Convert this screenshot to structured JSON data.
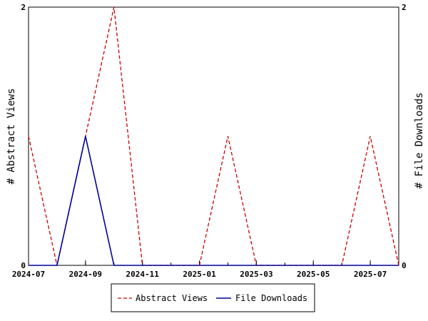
{
  "chart_data": {
    "type": "line",
    "x": [
      "2024-07",
      "2024-08",
      "2024-09",
      "2024-10",
      "2024-11",
      "2024-12",
      "2025-01",
      "2025-02",
      "2025-03",
      "2025-04",
      "2025-05",
      "2025-06",
      "2025-07",
      "2025-08"
    ],
    "x_tick_labels": [
      "2024-07",
      "2024-09",
      "2024-11",
      "2025-01",
      "2025-03",
      "2025-05",
      "2025-07"
    ],
    "series": [
      {
        "name": "Abstract Views",
        "axis": "left",
        "color": "#cc0000",
        "dash": "dashed",
        "values": [
          1,
          0,
          1,
          2,
          0,
          0,
          0,
          1,
          0,
          0,
          0,
          0,
          1,
          0
        ]
      },
      {
        "name": "File Downloads",
        "axis": "right",
        "color": "#000099",
        "dash": "solid",
        "values": [
          0,
          0,
          1,
          0,
          0,
          0,
          0,
          0,
          0,
          0,
          0,
          0,
          0,
          0
        ]
      }
    ],
    "ylabel": "# Abstract Views",
    "y2label": "# File Downloads",
    "ylim": [
      0,
      2
    ],
    "y2lim": [
      0,
      2
    ],
    "y_tick_labels": [
      "0",
      "2"
    ],
    "y2_tick_labels": [
      "0",
      "2"
    ],
    "grid": false,
    "legend_position": "bottom"
  }
}
